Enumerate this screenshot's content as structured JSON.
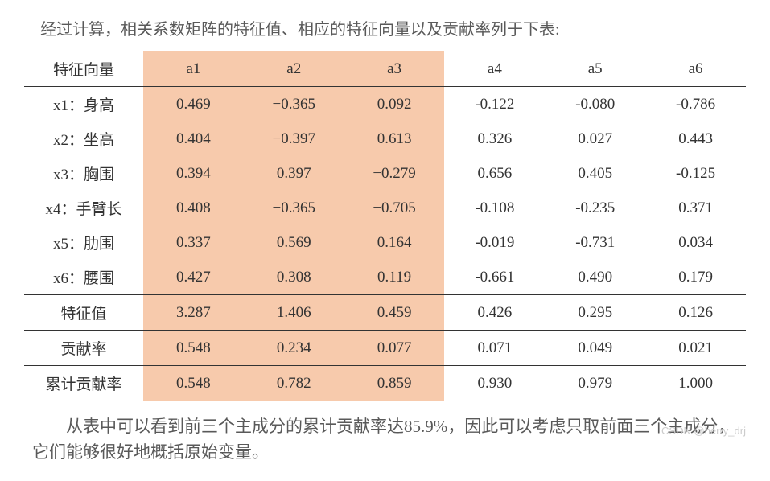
{
  "intro": "经过计算，相关系数矩阵的特征值、相应的特征向量以及贡献率列于下表:",
  "header": {
    "label": "特征向量",
    "cols": [
      "a1",
      "a2",
      "a3",
      "a4",
      "a5",
      "a6"
    ]
  },
  "highlight_cols": [
    0,
    1,
    2
  ],
  "rows": [
    {
      "label": "x1：身高",
      "vals": [
        "0.469",
        "−0.365",
        "0.092",
        "-0.122",
        "-0.080",
        "-0.786"
      ]
    },
    {
      "label": "x2：坐高",
      "vals": [
        "0.404",
        "−0.397",
        "0.613",
        "0.326",
        "0.027",
        "0.443"
      ]
    },
    {
      "label": "x3：胸围",
      "vals": [
        "0.394",
        "0.397",
        "−0.279",
        "0.656",
        "0.405",
        "-0.125"
      ]
    },
    {
      "label": "x4：手臂长",
      "vals": [
        "0.408",
        "−0.365",
        "−0.705",
        "-0.108",
        "-0.235",
        "0.371"
      ]
    },
    {
      "label": "x5：肋围",
      "vals": [
        "0.337",
        "0.569",
        "0.164",
        "-0.019",
        "-0.731",
        "0.034"
      ]
    },
    {
      "label": "x6：腰围",
      "vals": [
        "0.427",
        "0.308",
        "0.119",
        "-0.661",
        "0.490",
        "0.179"
      ]
    }
  ],
  "eigen": {
    "label": "特征值",
    "vals": [
      "3.287",
      "1.406",
      "0.459",
      "0.426",
      "0.295",
      "0.126"
    ]
  },
  "contrib": {
    "label": "贡献率",
    "vals": [
      "0.548",
      "0.234",
      "0.077",
      "0.071",
      "0.049",
      "0.021"
    ]
  },
  "cum": {
    "label": "累计贡献率",
    "vals": [
      "0.548",
      "0.782",
      "0.859",
      "0.930",
      "0.979",
      "1.000"
    ]
  },
  "conclusion": "从表中可以看到前三个主成分的累计贡献率达85.9%，因此可以考虑只取前面三个主成分，它们能够很好地概括原始变量。",
  "watermark": "CSDN @herry_drj",
  "colors": {
    "highlight": "#f7caac",
    "border": "#333333",
    "text": "#595959"
  }
}
